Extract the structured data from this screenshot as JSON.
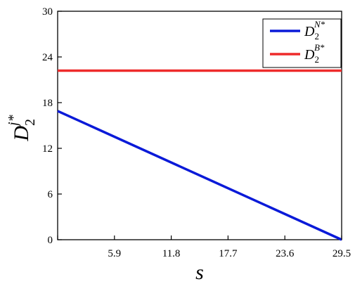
{
  "chart_data": {
    "type": "line",
    "xlabel": "s",
    "ylabel": {
      "base": "D",
      "sub": "2",
      "sup": "j*"
    },
    "xlim": [
      0,
      29.5
    ],
    "ylim": [
      0,
      30
    ],
    "x_ticks": [
      0,
      5.9,
      11.8,
      17.7,
      23.6,
      29.5
    ],
    "x_tick_labels": [
      "",
      "5.9",
      "11.8",
      "17.7",
      "23.6",
      "29.5"
    ],
    "y_ticks": [
      0,
      6,
      12,
      18,
      24,
      30
    ],
    "y_tick_labels": [
      "0",
      "6",
      "12",
      "18",
      "24",
      "30"
    ],
    "grid": false,
    "legend_position": "top-right",
    "series": [
      {
        "name": {
          "base": "D",
          "sub": "2",
          "sup": "N*"
        },
        "color": "#0a1ad8",
        "x": [
          0,
          29.5
        ],
        "y": [
          16.9,
          0
        ]
      },
      {
        "name": {
          "base": "D",
          "sub": "2",
          "sup": "B*"
        },
        "color": "#ee2b2b",
        "x": [
          0,
          29.5
        ],
        "y": [
          22.2,
          22.2
        ]
      }
    ]
  }
}
